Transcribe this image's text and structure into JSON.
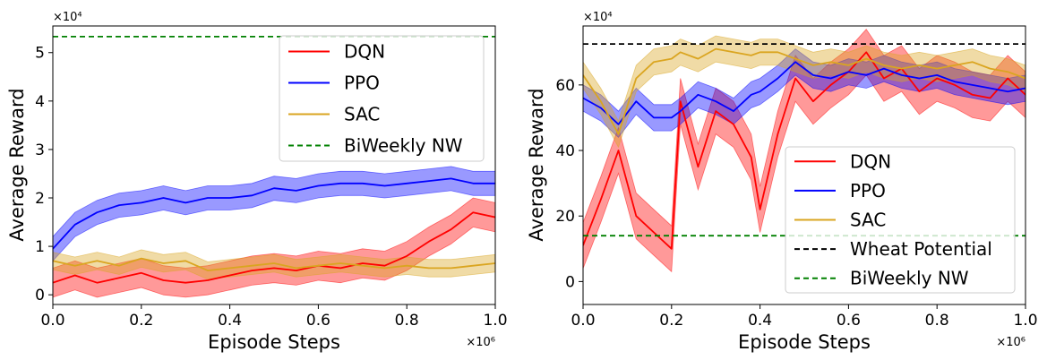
{
  "colors": {
    "dqn": "#ff0000",
    "ppo": "#0000ff",
    "sac": "#daa520",
    "wheat": "#000000",
    "biweekly": "#008000"
  },
  "chart_data": [
    {
      "type": "line",
      "title": "",
      "xlabel": "Episode Steps",
      "ylabel": "Average Reward",
      "x_multiplier": "×10⁶",
      "y_multiplier": "×10⁴",
      "xlim": [
        0,
        1.0
      ],
      "ylim": [
        -0.2,
        5.55
      ],
      "x_ticks": [
        0.0,
        0.2,
        0.4,
        0.6,
        0.8,
        1.0
      ],
      "x_tick_labels": [
        "0.0",
        "0.2",
        "0.4",
        "0.6",
        "0.8",
        "1.0"
      ],
      "y_ticks": [
        0,
        1,
        2,
        3,
        4,
        5
      ],
      "y_tick_labels": [
        "0",
        "1",
        "2",
        "3",
        "4",
        "5"
      ],
      "legend_position": "top-right",
      "x": [
        0.0,
        0.05,
        0.1,
        0.15,
        0.2,
        0.25,
        0.3,
        0.35,
        0.4,
        0.45,
        0.5,
        0.55,
        0.6,
        0.65,
        0.7,
        0.75,
        0.8,
        0.85,
        0.9,
        0.95,
        1.0
      ],
      "series": [
        {
          "name": "DQN",
          "key": "dqn",
          "values": [
            0.25,
            0.4,
            0.25,
            0.35,
            0.45,
            0.3,
            0.25,
            0.3,
            0.4,
            0.5,
            0.55,
            0.5,
            0.6,
            0.55,
            0.65,
            0.6,
            0.8,
            1.1,
            1.35,
            1.7,
            1.6
          ],
          "band": 0.3
        },
        {
          "name": "PPO",
          "key": "ppo",
          "values": [
            0.95,
            1.45,
            1.7,
            1.85,
            1.9,
            2.0,
            1.9,
            2.0,
            2.0,
            2.05,
            2.2,
            2.15,
            2.25,
            2.3,
            2.3,
            2.25,
            2.3,
            2.35,
            2.4,
            2.3,
            2.3
          ],
          "band": 0.25
        },
        {
          "name": "SAC",
          "key": "sac",
          "values": [
            0.7,
            0.6,
            0.7,
            0.6,
            0.75,
            0.65,
            0.7,
            0.5,
            0.55,
            0.6,
            0.65,
            0.55,
            0.6,
            0.65,
            0.6,
            0.55,
            0.6,
            0.55,
            0.55,
            0.6,
            0.65
          ],
          "band": 0.18
        }
      ],
      "hlines": [
        {
          "name": "BiWeekly NW",
          "key": "biweekly",
          "value": 5.33
        }
      ]
    },
    {
      "type": "line",
      "title": "",
      "xlabel": "Episode Steps",
      "ylabel": "Average Reward",
      "x_multiplier": "×10⁶",
      "y_multiplier": "×10⁴",
      "xlim": [
        0,
        1.0
      ],
      "ylim": [
        -7,
        78
      ],
      "x_ticks": [
        0.0,
        0.2,
        0.4,
        0.6,
        0.8,
        1.0
      ],
      "x_tick_labels": [
        "0.0",
        "0.2",
        "0.4",
        "0.6",
        "0.8",
        "1.0"
      ],
      "y_ticks": [
        0,
        20,
        40,
        60
      ],
      "y_tick_labels": [
        "0",
        "20",
        "40",
        "60"
      ],
      "legend_position": "lower-right",
      "x": [
        0.0,
        0.04,
        0.08,
        0.12,
        0.16,
        0.2,
        0.22,
        0.26,
        0.3,
        0.34,
        0.38,
        0.4,
        0.44,
        0.48,
        0.52,
        0.56,
        0.6,
        0.64,
        0.68,
        0.72,
        0.76,
        0.8,
        0.84,
        0.88,
        0.92,
        0.96,
        1.0
      ],
      "series": [
        {
          "name": "DQN",
          "key": "dqn",
          "values": [
            11,
            25,
            40,
            20,
            15,
            10,
            55,
            35,
            52,
            48,
            38,
            22,
            45,
            62,
            55,
            60,
            64,
            70,
            62,
            65,
            58,
            62,
            60,
            57,
            56,
            62,
            57
          ],
          "band": 7
        },
        {
          "name": "PPO",
          "key": "ppo",
          "values": [
            56,
            53,
            48,
            55,
            50,
            50,
            52,
            57,
            55,
            52,
            57,
            58,
            62,
            67,
            63,
            62,
            64,
            63,
            65,
            63,
            62,
            63,
            61,
            60,
            59,
            58,
            59
          ],
          "band": 4
        },
        {
          "name": "SAC",
          "key": "sac",
          "values": [
            63,
            55,
            45,
            62,
            67,
            68,
            70,
            68,
            71,
            70,
            69,
            70,
            70,
            68,
            66,
            67,
            66,
            68,
            66,
            65,
            66,
            65,
            66,
            67,
            65,
            64,
            62
          ],
          "band": 4
        }
      ],
      "hlines": [
        {
          "name": "Wheat Potential",
          "key": "wheat",
          "value": 72.5
        },
        {
          "name": "BiWeekly NW",
          "key": "biweekly",
          "value": 14
        }
      ]
    }
  ]
}
